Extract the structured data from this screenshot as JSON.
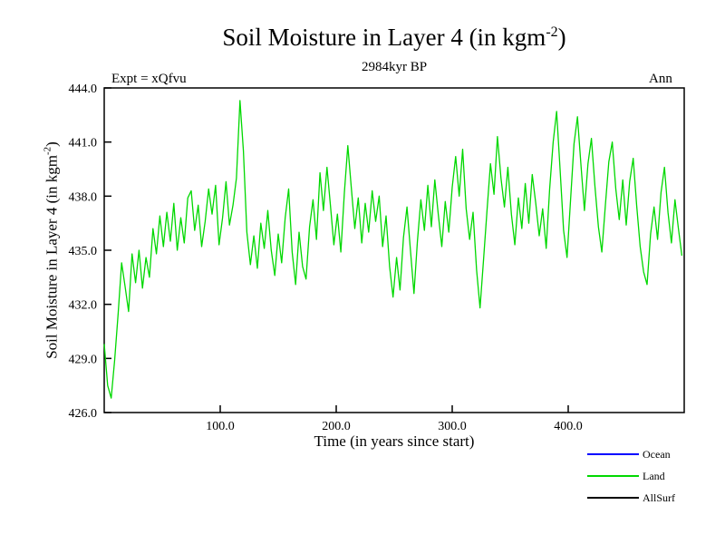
{
  "figure": {
    "title_prefix": "Soil Moisture in Layer 4 (in kgm",
    "title_sup": "-2",
    "title_suffix": ")",
    "subtitle": "2984kyr BP",
    "expt_label": "Expt = xQfvu",
    "period_label": "Ann"
  },
  "axes": {
    "ylabel_prefix": "Soil Moisture in Layer 4 (in kgm",
    "ylabel_sup": "-2",
    "ylabel_suffix": ")",
    "xlabel": "Time (in years since start)"
  },
  "legend": {
    "items": [
      {
        "label": "Ocean",
        "color": "#0000ff"
      },
      {
        "label": "Land",
        "color": "#00d800"
      },
      {
        "label": "AllSurf",
        "color": "#000000"
      }
    ]
  },
  "chart_data": {
    "type": "line",
    "title": "Soil Moisture in Layer 4 (in kgm⁻²)",
    "subtitle": "2984kyr BP",
    "annotations": [
      "Expt = xQfvu",
      "Ann"
    ],
    "xlabel": "Time (in years since start)",
    "ylabel": "Soil Moisture in Layer 4 (in kgm⁻²)",
    "xlim": [
      0,
      500
    ],
    "ylim": [
      426.0,
      444.0
    ],
    "xticks": [
      100,
      200,
      300,
      400
    ],
    "xtick_labels": [
      "100.0",
      "200.0",
      "300.0",
      "400.0"
    ],
    "yticks": [
      426,
      429,
      432,
      435,
      438,
      441,
      444
    ],
    "ytick_labels": [
      "426.0",
      "429.0",
      "432.0",
      "435.0",
      "438.0",
      "441.0",
      "444.0"
    ],
    "grid": false,
    "legend_position": "bottom-right",
    "legend_entries": [
      "Ocean",
      "Land",
      "AllSurf"
    ],
    "series": [
      {
        "name": "Land",
        "color": "#00d800",
        "points": [
          [
            0,
            429.8
          ],
          [
            3,
            427.5
          ],
          [
            6,
            426.8
          ],
          [
            9,
            428.9
          ],
          [
            12,
            431.5
          ],
          [
            15,
            434.3
          ],
          [
            18,
            433.0
          ],
          [
            21,
            431.6
          ],
          [
            24,
            434.8
          ],
          [
            27,
            433.2
          ],
          [
            30,
            435.0
          ],
          [
            33,
            432.9
          ],
          [
            36,
            434.6
          ],
          [
            39,
            433.5
          ],
          [
            42,
            436.2
          ],
          [
            45,
            434.8
          ],
          [
            48,
            436.9
          ],
          [
            51,
            435.2
          ],
          [
            54,
            437.1
          ],
          [
            57,
            435.5
          ],
          [
            60,
            437.6
          ],
          [
            63,
            435.0
          ],
          [
            66,
            436.8
          ],
          [
            69,
            435.4
          ],
          [
            72,
            437.9
          ],
          [
            75,
            438.3
          ],
          [
            78,
            436.1
          ],
          [
            81,
            437.5
          ],
          [
            84,
            435.2
          ],
          [
            87,
            436.6
          ],
          [
            90,
            438.4
          ],
          [
            93,
            437.0
          ],
          [
            96,
            438.6
          ],
          [
            99,
            435.3
          ],
          [
            102,
            436.8
          ],
          [
            105,
            438.8
          ],
          [
            108,
            436.4
          ],
          [
            111,
            437.5
          ],
          [
            114,
            439.0
          ],
          [
            117,
            443.3
          ],
          [
            120,
            440.5
          ],
          [
            123,
            436.0
          ],
          [
            126,
            434.2
          ],
          [
            129,
            435.8
          ],
          [
            132,
            434.0
          ],
          [
            135,
            436.5
          ],
          [
            138,
            435.1
          ],
          [
            141,
            437.2
          ],
          [
            144,
            435.0
          ],
          [
            147,
            433.6
          ],
          [
            150,
            435.9
          ],
          [
            153,
            434.3
          ],
          [
            156,
            436.8
          ],
          [
            159,
            438.4
          ],
          [
            162,
            434.9
          ],
          [
            165,
            433.1
          ],
          [
            168,
            436.0
          ],
          [
            171,
            434.1
          ],
          [
            174,
            433.4
          ],
          [
            177,
            436.3
          ],
          [
            180,
            437.8
          ],
          [
            183,
            435.6
          ],
          [
            186,
            439.3
          ],
          [
            189,
            437.2
          ],
          [
            192,
            439.6
          ],
          [
            195,
            437.5
          ],
          [
            198,
            435.3
          ],
          [
            201,
            437.0
          ],
          [
            204,
            434.9
          ],
          [
            207,
            438.2
          ],
          [
            210,
            440.8
          ],
          [
            213,
            438.5
          ],
          [
            216,
            436.2
          ],
          [
            219,
            437.9
          ],
          [
            222,
            435.4
          ],
          [
            225,
            437.6
          ],
          [
            228,
            436.0
          ],
          [
            231,
            438.3
          ],
          [
            234,
            436.6
          ],
          [
            237,
            438.0
          ],
          [
            240,
            435.2
          ],
          [
            243,
            436.9
          ],
          [
            246,
            434.1
          ],
          [
            249,
            432.4
          ],
          [
            252,
            434.6
          ],
          [
            255,
            432.8
          ],
          [
            258,
            435.7
          ],
          [
            261,
            437.4
          ],
          [
            264,
            435.0
          ],
          [
            267,
            432.6
          ],
          [
            270,
            435.5
          ],
          [
            273,
            437.8
          ],
          [
            276,
            436.1
          ],
          [
            279,
            438.6
          ],
          [
            282,
            436.3
          ],
          [
            285,
            438.9
          ],
          [
            288,
            437.0
          ],
          [
            291,
            435.2
          ],
          [
            294,
            437.7
          ],
          [
            297,
            436.0
          ],
          [
            300,
            438.5
          ],
          [
            303,
            440.2
          ],
          [
            306,
            438.0
          ],
          [
            309,
            440.6
          ],
          [
            312,
            437.3
          ],
          [
            315,
            435.6
          ],
          [
            318,
            437.1
          ],
          [
            321,
            433.9
          ],
          [
            324,
            431.8
          ],
          [
            327,
            434.5
          ],
          [
            330,
            437.2
          ],
          [
            333,
            439.8
          ],
          [
            336,
            438.1
          ],
          [
            339,
            441.3
          ],
          [
            342,
            439.0
          ],
          [
            345,
            437.4
          ],
          [
            348,
            439.6
          ],
          [
            351,
            437.0
          ],
          [
            354,
            435.3
          ],
          [
            357,
            437.9
          ],
          [
            360,
            436.2
          ],
          [
            363,
            438.7
          ],
          [
            366,
            436.5
          ],
          [
            369,
            439.2
          ],
          [
            372,
            437.6
          ],
          [
            375,
            435.8
          ],
          [
            378,
            437.3
          ],
          [
            381,
            435.1
          ],
          [
            384,
            438.4
          ],
          [
            387,
            441.0
          ],
          [
            390,
            442.7
          ],
          [
            393,
            439.5
          ],
          [
            396,
            436.1
          ],
          [
            399,
            434.6
          ],
          [
            402,
            437.8
          ],
          [
            405,
            440.9
          ],
          [
            408,
            442.4
          ],
          [
            411,
            439.7
          ],
          [
            414,
            437.2
          ],
          [
            417,
            439.8
          ],
          [
            420,
            441.2
          ],
          [
            423,
            438.6
          ],
          [
            426,
            436.3
          ],
          [
            429,
            434.9
          ],
          [
            432,
            437.5
          ],
          [
            435,
            439.9
          ],
          [
            438,
            441.0
          ],
          [
            441,
            438.4
          ],
          [
            444,
            436.7
          ],
          [
            447,
            438.9
          ],
          [
            450,
            436.4
          ],
          [
            453,
            438.8
          ],
          [
            456,
            440.1
          ],
          [
            459,
            437.5
          ],
          [
            462,
            435.2
          ],
          [
            465,
            433.8
          ],
          [
            468,
            433.1
          ],
          [
            471,
            435.9
          ],
          [
            474,
            437.4
          ],
          [
            477,
            435.6
          ],
          [
            480,
            438.2
          ],
          [
            483,
            439.6
          ],
          [
            486,
            437.1
          ],
          [
            489,
            435.4
          ],
          [
            492,
            437.8
          ],
          [
            495,
            436.2
          ],
          [
            498,
            434.7
          ]
        ]
      }
    ]
  }
}
